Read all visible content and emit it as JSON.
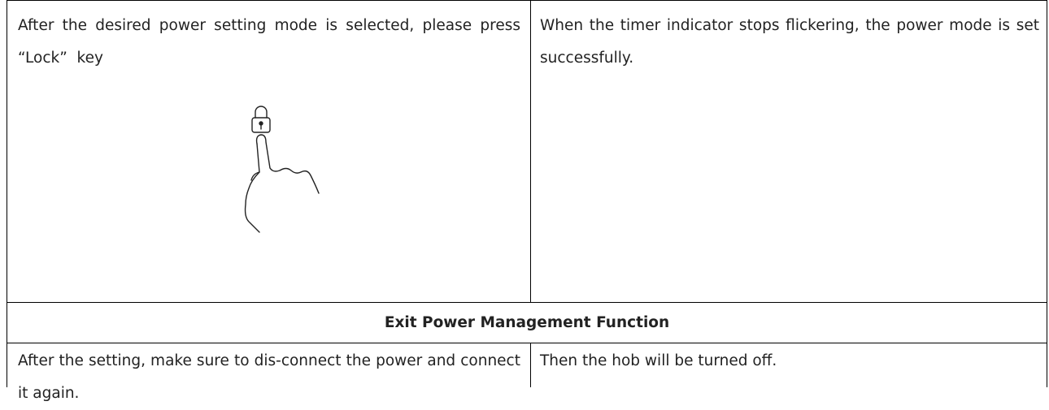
{
  "table": {
    "rows": [
      [
        "After the desired power setting mode is selected, please press “Lock”  key",
        "When the timer indicator stops flickering, the power mode is set successfully."
      ],
      [
        "Exit Power Management Function"
      ],
      [
        "After the setting, make sure to dis-connect the power and connect it again.",
        "Then the hob will be turned off."
      ]
    ]
  }
}
